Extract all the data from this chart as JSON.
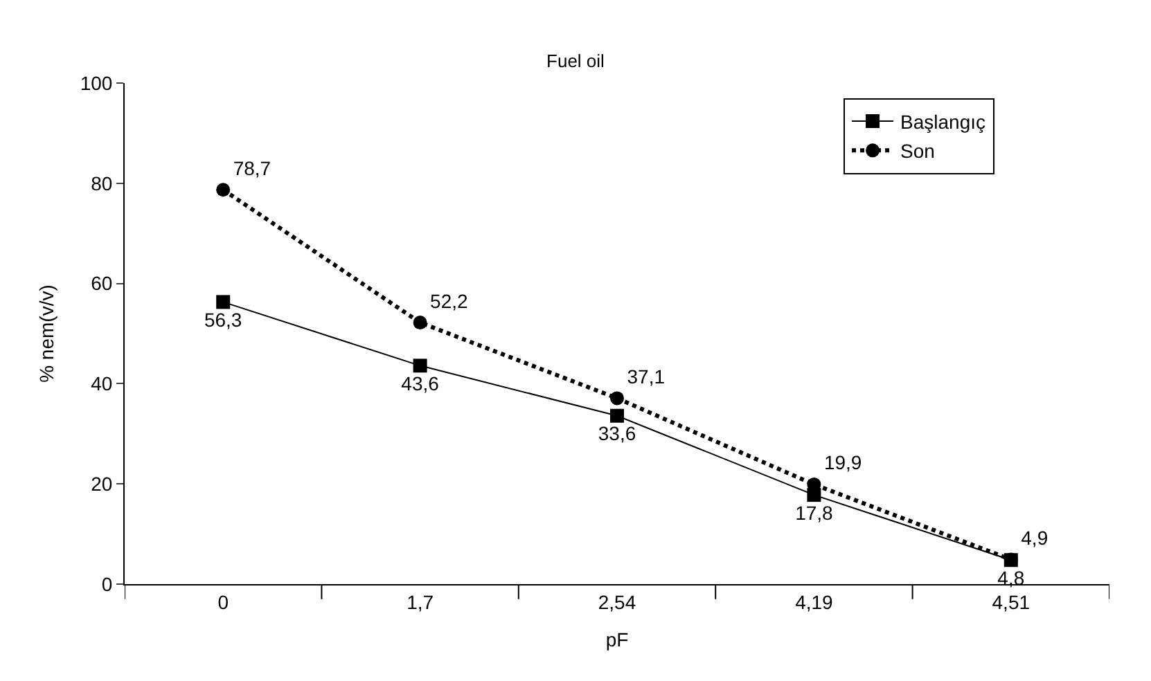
{
  "chart_data": {
    "type": "line",
    "title": "Fuel oil",
    "xlabel": "pF",
    "ylabel": "% nem(v/v)",
    "categories": [
      "0",
      "1,7",
      "2,54",
      "4,19",
      "4,51"
    ],
    "series": [
      {
        "name": "Başlangıç",
        "color": "#000000",
        "values": [
          56.3,
          43.6,
          33.6,
          17.8,
          4.8
        ],
        "value_labels": [
          "56,3",
          "43,6",
          "33,6",
          "17,8",
          "4,8"
        ],
        "marker": "square",
        "line_style": "solid"
      },
      {
        "name": "Son",
        "color": "#000000",
        "values": [
          78.7,
          52.2,
          37.1,
          19.9,
          4.9
        ],
        "value_labels": [
          "78,7",
          "52,2",
          "37,1",
          "19,9",
          "4,9"
        ],
        "marker": "circle",
        "line_style": "dotted"
      }
    ],
    "ylim": [
      0,
      100
    ],
    "yticks": [
      0,
      20,
      40,
      60,
      80,
      100
    ],
    "legend": "top right"
  }
}
